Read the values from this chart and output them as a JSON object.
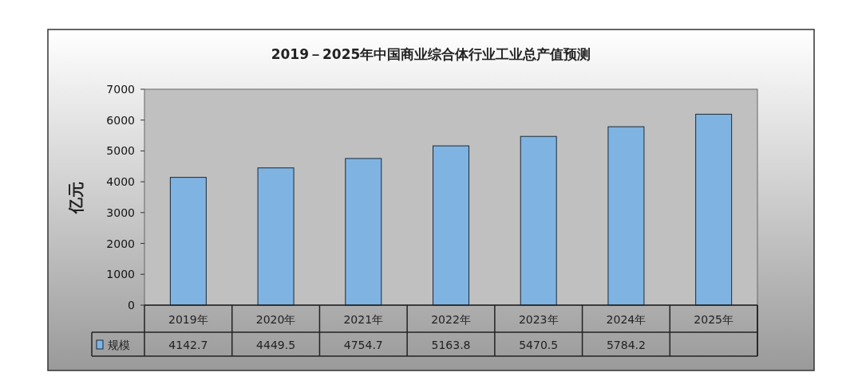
{
  "chart_data": {
    "type": "bar",
    "title": "2019－2025年中国商业综合体行业工业总产值预测",
    "ylabel": "亿元",
    "categories": [
      "2019年",
      "2020年",
      "2021年",
      "2022年",
      "2023年",
      "2024年",
      "2025年"
    ],
    "series": [
      {
        "name": "规模",
        "color": "#7fb4e2",
        "values": [
          4142.7,
          4449.5,
          4754.7,
          5163.8,
          5470.5,
          5784.2,
          6190
        ],
        "value_labels": [
          "4142.7",
          "4449.5",
          "4754.7",
          "5163.8",
          "5470.5",
          "5784.2",
          null
        ]
      }
    ],
    "ylim": [
      0,
      7000
    ],
    "yticks": [
      0,
      1000,
      2000,
      3000,
      4000,
      5000,
      6000,
      7000
    ],
    "legend": "bottom"
  }
}
